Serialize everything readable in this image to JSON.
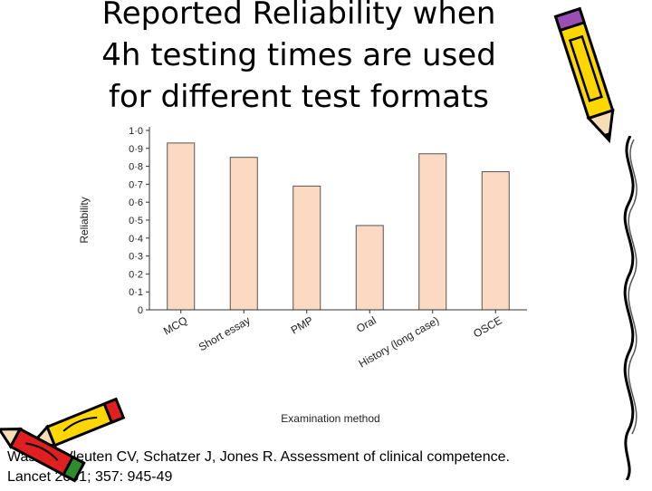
{
  "title": {
    "line1": "Reported Reliability when",
    "line2": "4h testing times are used",
    "line3": "for different test formats"
  },
  "chart_data": {
    "type": "bar",
    "categories": [
      "MCQ",
      "Short essay",
      "PMP",
      "Oral",
      "History (long case)",
      "OSCE"
    ],
    "values": [
      0.93,
      0.85,
      0.69,
      0.47,
      0.87,
      0.77
    ],
    "xlabel": "Examination method",
    "ylabel": "Reliability",
    "ylim": [
      0,
      1.0
    ],
    "yticks": [
      "0",
      "0·1",
      "0·2",
      "0·3",
      "0·4",
      "0·5",
      "0·6",
      "0·7",
      "0·8",
      "0·9",
      "1·0"
    ],
    "grid": false,
    "bar_color": "#fcd9c2",
    "bar_edge_color": "#555555"
  },
  "citation": {
    "line1": "Wass V, Vleuten CV, Schatzer J, Jones R. Assessment of clinical competence.",
    "line2": "Lancet 2001; 357: 945-49"
  },
  "decorations": {
    "top_right_icon": "pencil-icon",
    "right_edge_icon": "squiggle-line-icon",
    "bottom_left_icon": "pencils-icon",
    "pencil_yellow": "#ffd700",
    "pencil_red": "#e02020"
  }
}
